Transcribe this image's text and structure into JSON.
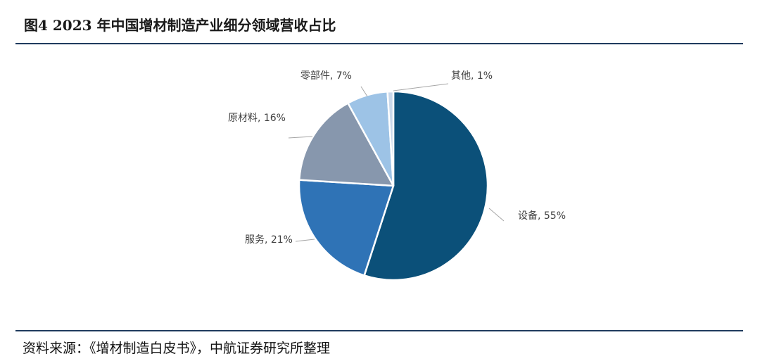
{
  "figure": {
    "title": "图4  2023 年中国增材制造产业细分领域营收占比",
    "source": "资料来源：《增材制造白皮书》，中航证券研究所整理"
  },
  "chart_data": {
    "type": "pie",
    "title": "图4  2023 年中国增材制造产业细分领域营收占比",
    "slices": [
      {
        "label": "设备",
        "value": 55,
        "unit": "%",
        "color": "#0b5079"
      },
      {
        "label": "服务",
        "value": 21,
        "unit": "%",
        "color": "#2f73b6"
      },
      {
        "label": "原材料",
        "value": 16,
        "unit": "%",
        "color": "#8797ad"
      },
      {
        "label": "零部件",
        "value": 7,
        "unit": "%",
        "color": "#9dc3e6"
      },
      {
        "label": "其他",
        "value": 1,
        "unit": "%",
        "color": "#c9d8ea"
      }
    ],
    "data_labels": [
      "设备, 55%",
      "服务, 21%",
      "原材料, 16%",
      "零部件, 7%",
      "其他, 1%"
    ],
    "start_angle": "12 o'clock",
    "direction": "clockwise",
    "legend": "none"
  }
}
